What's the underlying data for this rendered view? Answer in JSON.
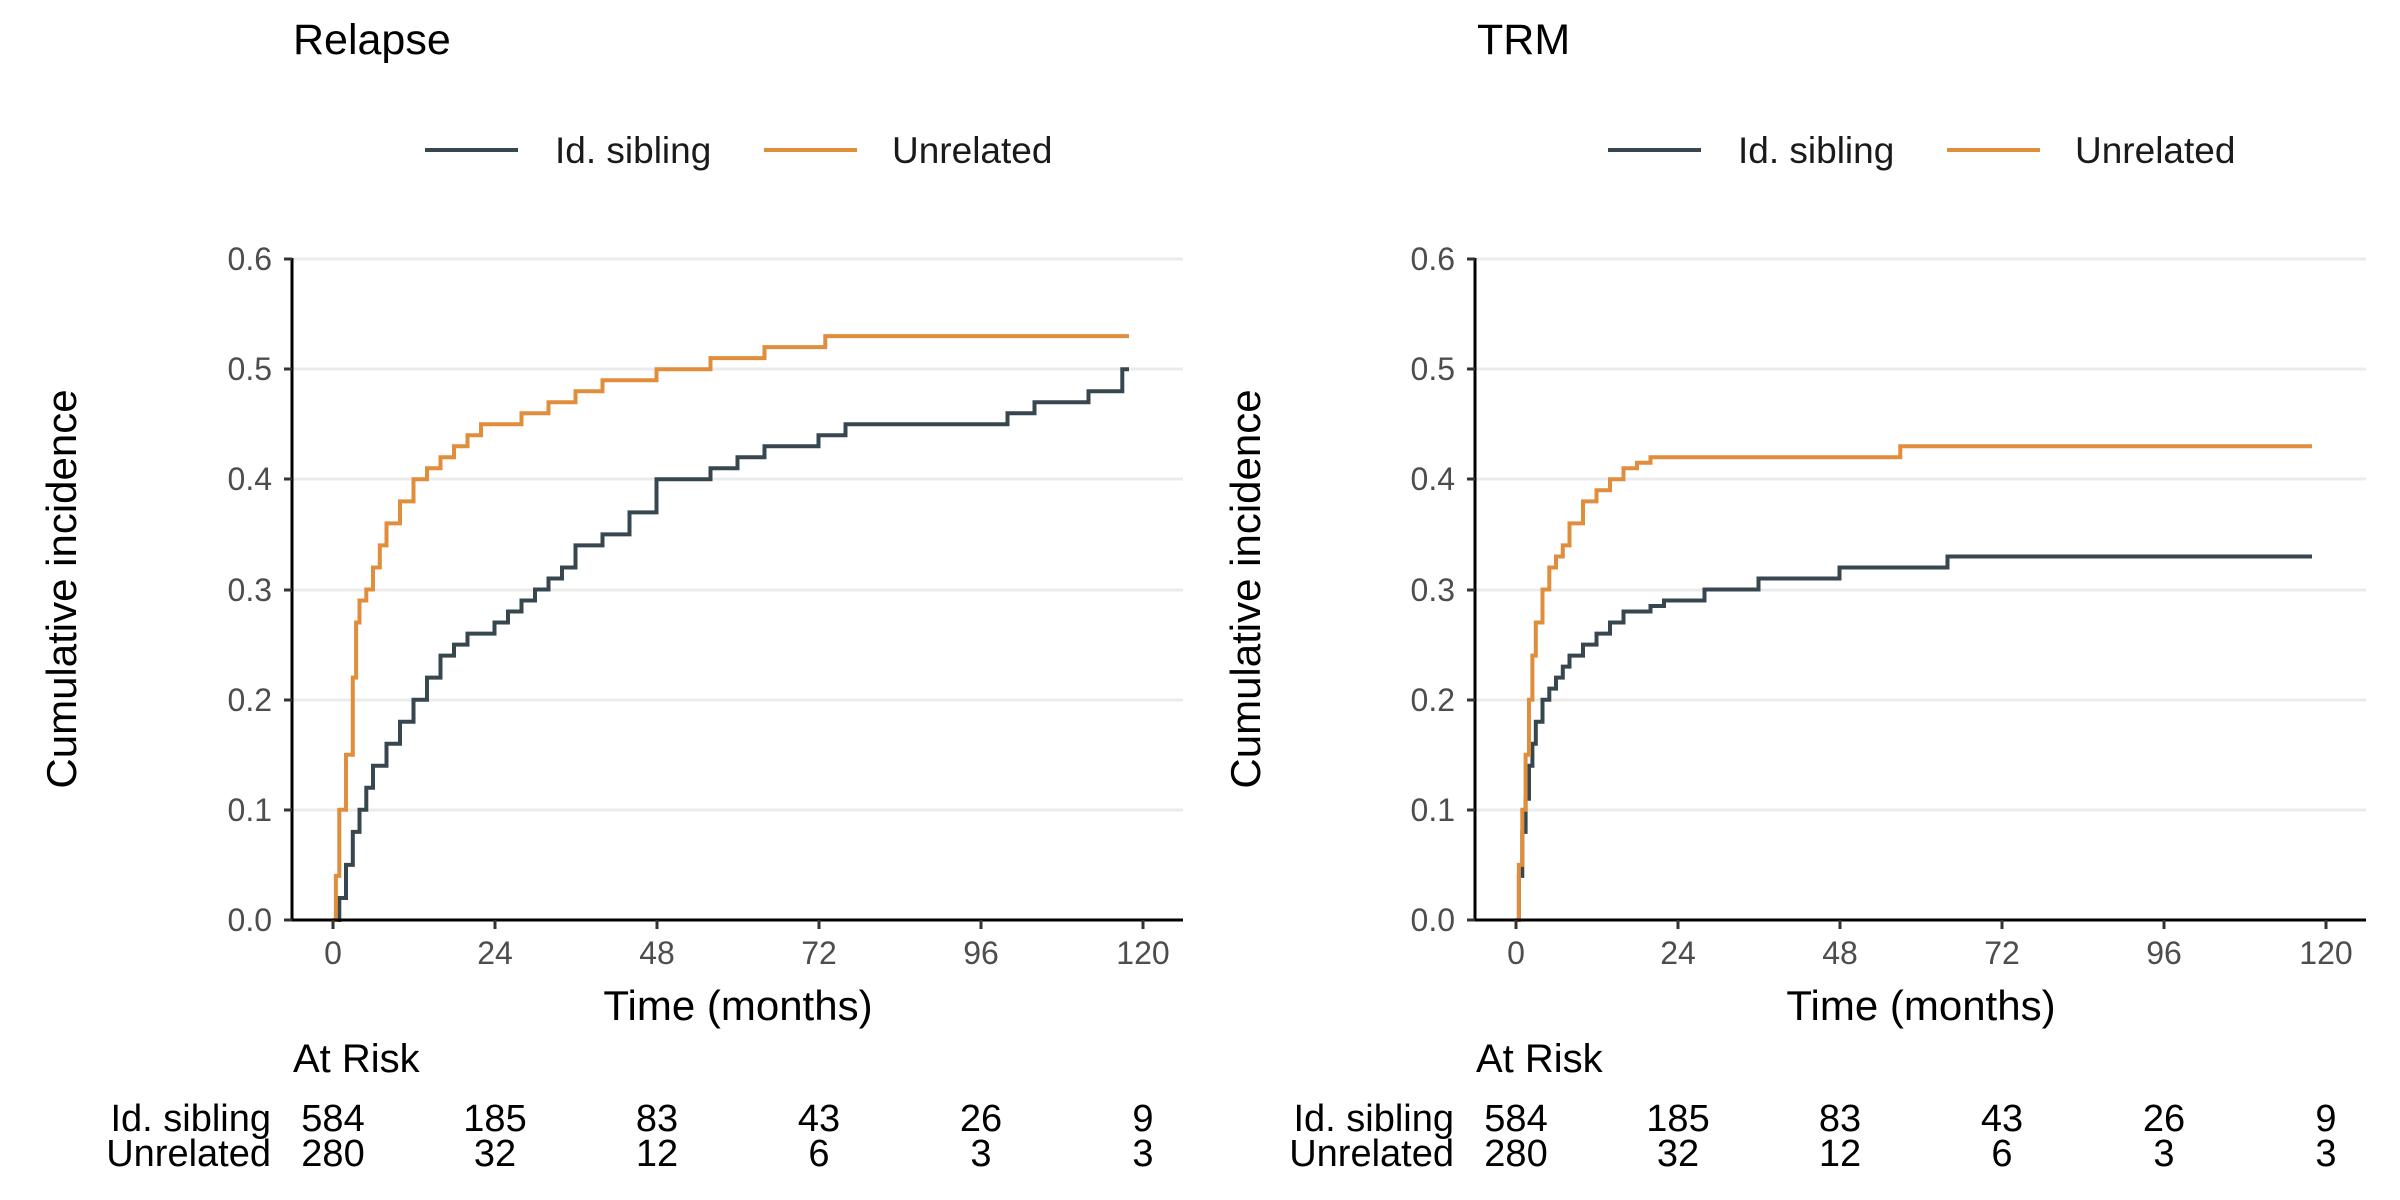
{
  "colors": {
    "id_sibling": "#37474f",
    "unrelated": "#e08d3c",
    "grid": "#ebebeb",
    "axis": "#000000"
  },
  "chart_data": [
    {
      "type": "line",
      "subtype": "step",
      "title": "Relapse",
      "xlabel": "Time (months)",
      "ylabel": "Cumulative incidence",
      "xlim": [
        -6,
        126
      ],
      "ylim": [
        0,
        0.6
      ],
      "xticks": [
        0,
        24,
        48,
        72,
        96,
        120
      ],
      "xtick_labels": [
        "0",
        "24",
        "48",
        "72",
        "96",
        "120"
      ],
      "yticks": [
        0,
        0.1,
        0.2,
        0.3,
        0.4,
        0.5,
        0.6
      ],
      "ytick_labels": [
        "0.0",
        "0.1",
        "0.2",
        "0.3",
        "0.4",
        "0.5",
        "0.6"
      ],
      "grid": "horizontal major",
      "legend_position": "top",
      "series": [
        {
          "name": "Id. sibling",
          "color": "#37474f",
          "x": [
            0,
            1,
            2,
            3,
            4,
            5,
            6,
            8,
            10,
            12,
            14,
            16,
            18,
            20,
            22,
            24,
            26,
            28,
            30,
            32,
            34,
            36,
            40,
            44,
            48,
            56,
            60,
            64,
            72,
            76,
            80,
            92,
            96,
            100,
            104,
            108,
            112,
            116,
            117,
            118
          ],
          "y": [
            0,
            0.02,
            0.05,
            0.08,
            0.1,
            0.12,
            0.14,
            0.16,
            0.18,
            0.2,
            0.22,
            0.24,
            0.25,
            0.26,
            0.26,
            0.27,
            0.28,
            0.29,
            0.3,
            0.31,
            0.32,
            0.34,
            0.35,
            0.37,
            0.4,
            0.41,
            0.42,
            0.43,
            0.44,
            0.45,
            0.45,
            0.45,
            0.45,
            0.46,
            0.47,
            0.47,
            0.48,
            0.48,
            0.5,
            0.5
          ]
        },
        {
          "name": "Unrelated",
          "color": "#e08d3c",
          "x": [
            0,
            0.5,
            1,
            2,
            3,
            3.5,
            4,
            5,
            6,
            7,
            8,
            10,
            12,
            14,
            16,
            18,
            20,
            22,
            24,
            28,
            32,
            36,
            40,
            44,
            48,
            56,
            60,
            64,
            72,
            73,
            118
          ],
          "y": [
            0,
            0.04,
            0.1,
            0.15,
            0.22,
            0.27,
            0.29,
            0.3,
            0.32,
            0.34,
            0.36,
            0.38,
            0.4,
            0.41,
            0.42,
            0.43,
            0.44,
            0.45,
            0.45,
            0.46,
            0.47,
            0.48,
            0.49,
            0.49,
            0.5,
            0.51,
            0.51,
            0.52,
            0.52,
            0.53,
            0.53
          ]
        }
      ],
      "at_risk": {
        "title": "At Risk",
        "times": [
          0,
          24,
          48,
          72,
          96,
          120
        ],
        "rows": [
          {
            "label": "Id. sibling",
            "counts": [
              "584",
              "185",
              "83",
              "43",
              "26",
              "9"
            ]
          },
          {
            "label": "Unrelated",
            "counts": [
              "280",
              "32",
              "12",
              "6",
              "3",
              "3"
            ]
          }
        ]
      }
    },
    {
      "type": "line",
      "subtype": "step",
      "title": "TRM",
      "xlabel": "Time (months)",
      "ylabel": "Cumulative incidence",
      "xlim": [
        -6,
        126
      ],
      "ylim": [
        0,
        0.6
      ],
      "xticks": [
        0,
        24,
        48,
        72,
        96,
        120
      ],
      "xtick_labels": [
        "0",
        "24",
        "48",
        "72",
        "96",
        "120"
      ],
      "yticks": [
        0,
        0.1,
        0.2,
        0.3,
        0.4,
        0.5,
        0.6
      ],
      "ytick_labels": [
        "0.0",
        "0.1",
        "0.2",
        "0.3",
        "0.4",
        "0.5",
        "0.6"
      ],
      "grid": "horizontal major",
      "legend_position": "top",
      "series": [
        {
          "name": "Id. sibling",
          "color": "#37474f",
          "x": [
            0,
            0.5,
            1,
            1.5,
            2,
            2.5,
            3,
            4,
            5,
            6,
            7,
            8,
            10,
            12,
            14,
            16,
            18,
            20,
            22,
            24,
            28,
            32,
            36,
            40,
            44,
            48,
            56,
            60,
            64,
            68,
            72,
            118
          ],
          "y": [
            0,
            0.04,
            0.08,
            0.11,
            0.14,
            0.16,
            0.18,
            0.2,
            0.21,
            0.22,
            0.23,
            0.24,
            0.25,
            0.26,
            0.27,
            0.28,
            0.28,
            0.285,
            0.29,
            0.29,
            0.3,
            0.3,
            0.31,
            0.31,
            0.31,
            0.32,
            0.32,
            0.32,
            0.33,
            0.33,
            0.33,
            0.33
          ]
        },
        {
          "name": "Unrelated",
          "color": "#e08d3c",
          "x": [
            0,
            0.5,
            1,
            1.5,
            2,
            2.5,
            3,
            4,
            5,
            6,
            7,
            8,
            10,
            12,
            14,
            16,
            18,
            20,
            22,
            24,
            36,
            48,
            56,
            57,
            118
          ],
          "y": [
            0,
            0.05,
            0.1,
            0.15,
            0.2,
            0.24,
            0.27,
            0.3,
            0.32,
            0.33,
            0.34,
            0.36,
            0.38,
            0.39,
            0.4,
            0.41,
            0.415,
            0.42,
            0.42,
            0.42,
            0.42,
            0.42,
            0.42,
            0.43,
            0.43
          ]
        }
      ],
      "at_risk": {
        "title": "At Risk",
        "times": [
          0,
          24,
          48,
          72,
          96,
          120
        ],
        "rows": [
          {
            "label": "Id. sibling",
            "counts": [
              "584",
              "185",
              "83",
              "43",
              "26",
              "9"
            ]
          },
          {
            "label": "Unrelated",
            "counts": [
              "280",
              "32",
              "12",
              "6",
              "3",
              "3"
            ]
          }
        ]
      }
    }
  ]
}
